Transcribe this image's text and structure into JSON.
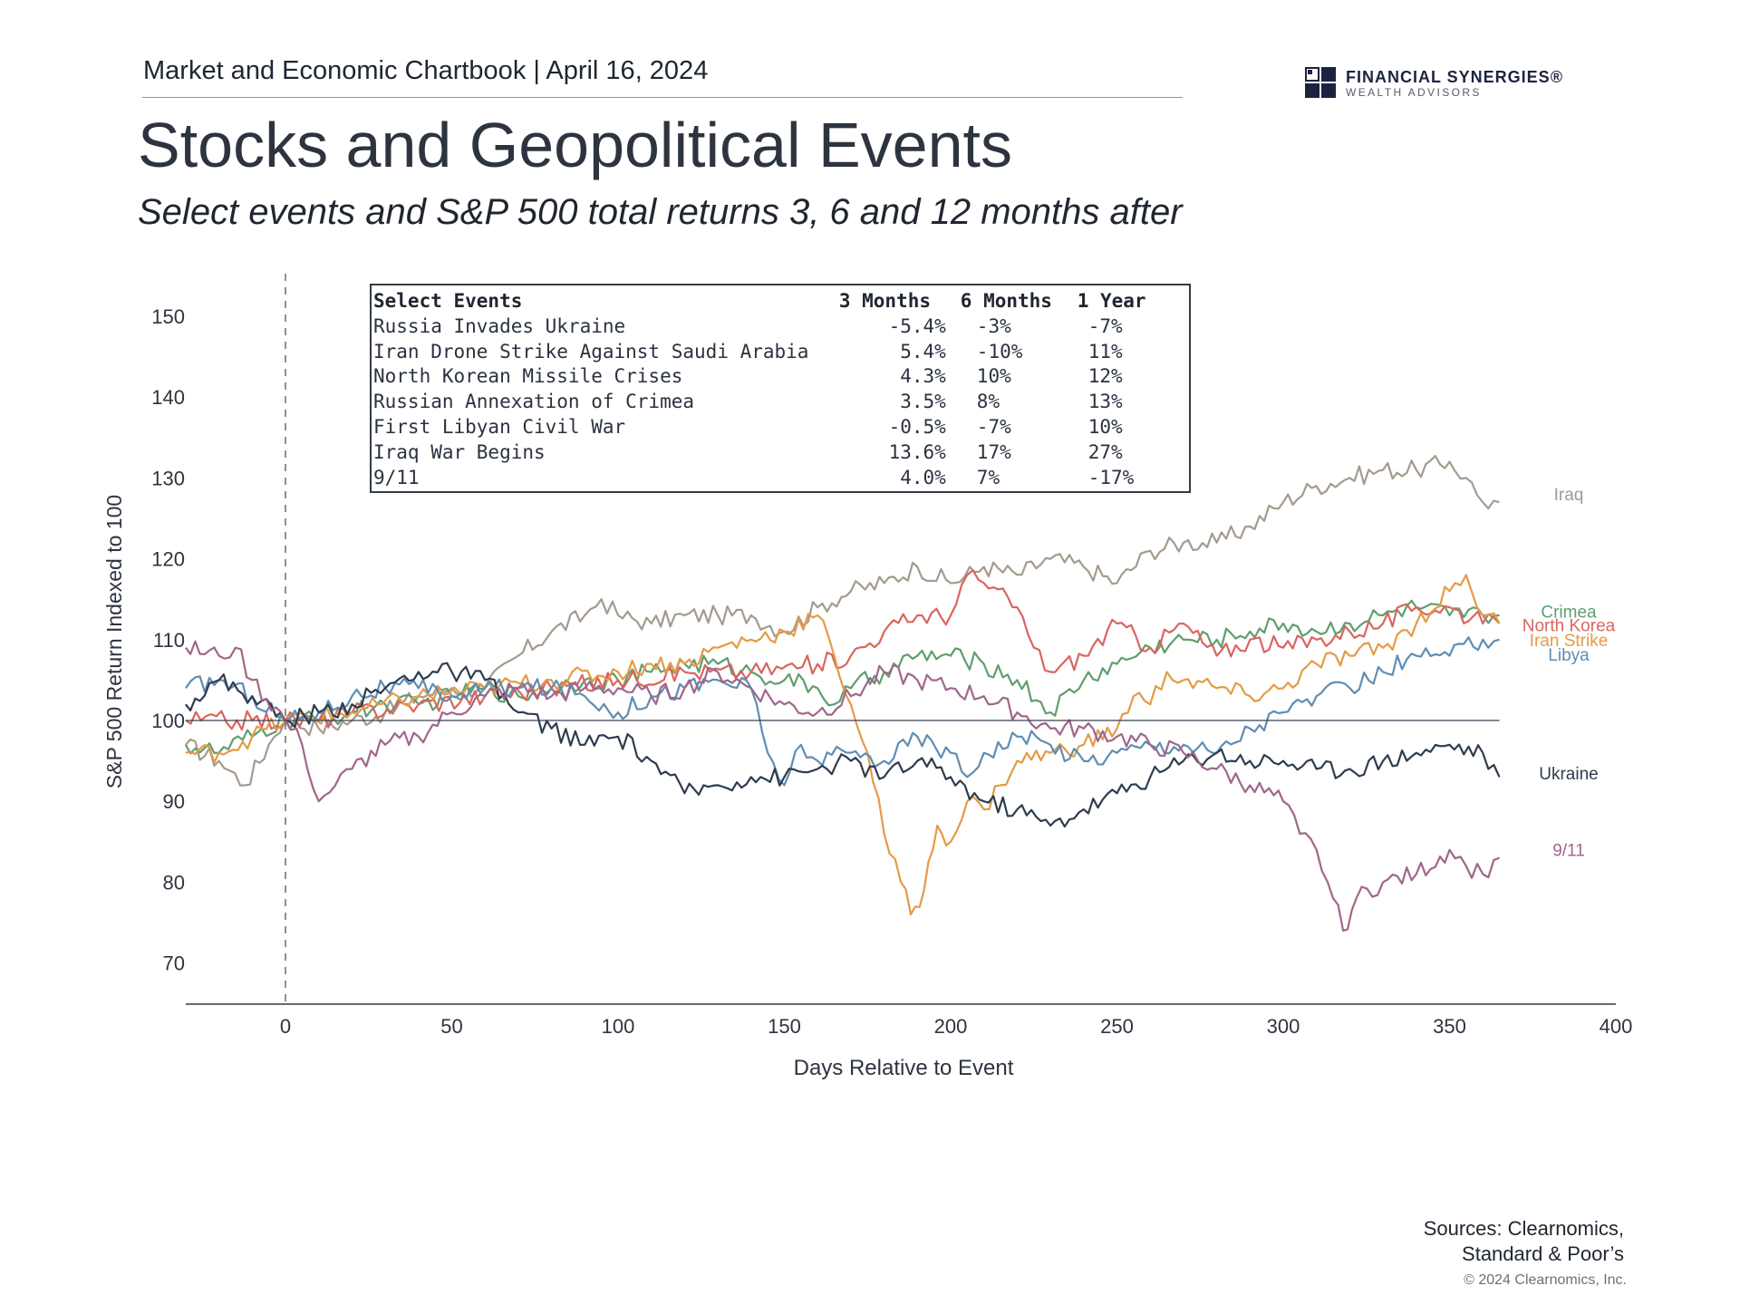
{
  "header": {
    "chartbook_line": "Market and Economic Chartbook | April 16, 2024",
    "logo_name": "FINANCIAL SYNERGIES®",
    "logo_sub": "WEALTH ADVISORS",
    "logo_icon": "checkered-square-icon",
    "title": "Stocks and Geopolitical Events",
    "subtitle": "Select events and S&P 500 total returns 3, 6 and 12 months after"
  },
  "events_table": {
    "headers": [
      "Select Events",
      "3 Months",
      "6 Months",
      "1 Year"
    ],
    "rows": [
      [
        "Russia Invades Ukraine",
        "-5.4%",
        "-3%",
        "-7%"
      ],
      [
        "Iran Drone Strike Against Saudi Arabia",
        "5.4%",
        "-10%",
        "11%"
      ],
      [
        "North Korean Missile Crises",
        "4.3%",
        "10%",
        "12%"
      ],
      [
        "Russian Annexation of Crimea",
        "3.5%",
        "8%",
        "13%"
      ],
      [
        "First Libyan Civil War",
        "-0.5%",
        "-7%",
        "10%"
      ],
      [
        "Iraq War Begins",
        "13.6%",
        "17%",
        "27%"
      ],
      [
        "9/11",
        "4.0%",
        "7%",
        "-17%"
      ]
    ]
  },
  "chart_data": {
    "type": "line",
    "title": "Stocks and Geopolitical Events",
    "xlabel": "Days Relative to Event",
    "ylabel": "S&P 500 Return Indexed to 100",
    "xlim": [
      -30,
      400
    ],
    "ylim": [
      65,
      155
    ],
    "x_ticks": [
      0,
      50,
      100,
      150,
      200,
      250,
      300,
      350,
      400
    ],
    "y_ticks": [
      70,
      80,
      90,
      100,
      110,
      120,
      130,
      140,
      150
    ],
    "reference_line_y": 100,
    "event_marker_x": 0,
    "legend": "series labels at right end of lines",
    "grid": false,
    "series": [
      {
        "name": "Iraq",
        "color": "#a49a8e",
        "points": [
          [
            -30,
            97
          ],
          [
            -20,
            95
          ],
          [
            -12,
            92
          ],
          [
            -5,
            97
          ],
          [
            0,
            100
          ],
          [
            10,
            99
          ],
          [
            20,
            100
          ],
          [
            30,
            101
          ],
          [
            40,
            103
          ],
          [
            50,
            104
          ],
          [
            60,
            104
          ],
          [
            70,
            108
          ],
          [
            80,
            111
          ],
          [
            90,
            113
          ],
          [
            95,
            115
          ],
          [
            100,
            113
          ],
          [
            110,
            112
          ],
          [
            120,
            113
          ],
          [
            130,
            113
          ],
          [
            140,
            113
          ],
          [
            150,
            111
          ],
          [
            160,
            114
          ],
          [
            170,
            116
          ],
          [
            180,
            117
          ],
          [
            190,
            119
          ],
          [
            200,
            117
          ],
          [
            210,
            119
          ],
          [
            220,
            118
          ],
          [
            230,
            120
          ],
          [
            240,
            119
          ],
          [
            250,
            117
          ],
          [
            260,
            121
          ],
          [
            270,
            122
          ],
          [
            280,
            122
          ],
          [
            290,
            124
          ],
          [
            300,
            127
          ],
          [
            310,
            129
          ],
          [
            320,
            130
          ],
          [
            330,
            131
          ],
          [
            340,
            131
          ],
          [
            350,
            132
          ],
          [
            355,
            130
          ],
          [
            360,
            127
          ],
          [
            365,
            127
          ]
        ]
      },
      {
        "name": "Crimea",
        "color": "#5f9e6e",
        "points": [
          [
            -30,
            97
          ],
          [
            -20,
            96
          ],
          [
            -10,
            98
          ],
          [
            0,
            100
          ],
          [
            10,
            100
          ],
          [
            20,
            101
          ],
          [
            30,
            102
          ],
          [
            40,
            102
          ],
          [
            50,
            103
          ],
          [
            60,
            104
          ],
          [
            70,
            103
          ],
          [
            80,
            104
          ],
          [
            90,
            105
          ],
          [
            100,
            105
          ],
          [
            110,
            106
          ],
          [
            120,
            107
          ],
          [
            130,
            107
          ],
          [
            140,
            106
          ],
          [
            150,
            105
          ],
          [
            160,
            104
          ],
          [
            165,
            102
          ],
          [
            170,
            104
          ],
          [
            180,
            106
          ],
          [
            190,
            108
          ],
          [
            200,
            108
          ],
          [
            210,
            107
          ],
          [
            220,
            105
          ],
          [
            230,
            101
          ],
          [
            240,
            105
          ],
          [
            250,
            107
          ],
          [
            260,
            109
          ],
          [
            270,
            110
          ],
          [
            280,
            110
          ],
          [
            290,
            111
          ],
          [
            300,
            112
          ],
          [
            310,
            111
          ],
          [
            320,
            112
          ],
          [
            330,
            113
          ],
          [
            340,
            114
          ],
          [
            350,
            113
          ],
          [
            360,
            113
          ],
          [
            365,
            113
          ]
        ]
      },
      {
        "name": "North Korea",
        "color": "#d9655f",
        "points": [
          [
            -30,
            100
          ],
          [
            -10,
            100
          ],
          [
            0,
            100
          ],
          [
            10,
            100
          ],
          [
            20,
            101
          ],
          [
            40,
            102
          ],
          [
            60,
            103
          ],
          [
            80,
            104
          ],
          [
            100,
            105
          ],
          [
            120,
            106
          ],
          [
            140,
            106
          ],
          [
            160,
            107
          ],
          [
            170,
            108
          ],
          [
            180,
            111
          ],
          [
            190,
            113
          ],
          [
            200,
            113
          ],
          [
            205,
            118
          ],
          [
            210,
            117
          ],
          [
            220,
            114
          ],
          [
            225,
            109
          ],
          [
            230,
            106
          ],
          [
            240,
            108
          ],
          [
            250,
            112
          ],
          [
            260,
            109
          ],
          [
            270,
            112
          ],
          [
            280,
            108
          ],
          [
            290,
            110
          ],
          [
            300,
            109
          ],
          [
            310,
            110
          ],
          [
            320,
            111
          ],
          [
            330,
            112
          ],
          [
            340,
            114
          ],
          [
            350,
            114
          ],
          [
            360,
            112
          ],
          [
            365,
            112
          ]
        ]
      },
      {
        "name": "Iran Strike",
        "color": "#e39b45",
        "points": [
          [
            -30,
            96
          ],
          [
            -20,
            96
          ],
          [
            -10,
            98
          ],
          [
            0,
            100
          ],
          [
            20,
            101
          ],
          [
            40,
            103
          ],
          [
            60,
            104
          ],
          [
            80,
            105
          ],
          [
            100,
            106
          ],
          [
            110,
            107
          ],
          [
            120,
            107
          ],
          [
            130,
            109
          ],
          [
            140,
            110
          ],
          [
            150,
            111
          ],
          [
            160,
            113
          ],
          [
            165,
            108
          ],
          [
            170,
            102
          ],
          [
            175,
            96
          ],
          [
            180,
            86
          ],
          [
            185,
            80
          ],
          [
            188,
            76
          ],
          [
            192,
            79
          ],
          [
            196,
            87
          ],
          [
            200,
            85
          ],
          [
            205,
            90
          ],
          [
            210,
            89
          ],
          [
            215,
            92
          ],
          [
            220,
            95
          ],
          [
            230,
            96
          ],
          [
            240,
            97
          ],
          [
            250,
            99
          ],
          [
            255,
            103
          ],
          [
            260,
            102
          ],
          [
            265,
            106
          ],
          [
            270,
            105
          ],
          [
            280,
            104
          ],
          [
            290,
            103
          ],
          [
            300,
            104
          ],
          [
            310,
            107
          ],
          [
            320,
            108
          ],
          [
            330,
            109
          ],
          [
            340,
            112
          ],
          [
            350,
            116
          ],
          [
            355,
            118
          ],
          [
            360,
            113
          ],
          [
            365,
            112
          ]
        ]
      },
      {
        "name": "Libya",
        "color": "#5f8db3",
        "points": [
          [
            -30,
            104
          ],
          [
            -20,
            105
          ],
          [
            -10,
            103
          ],
          [
            0,
            100
          ],
          [
            10,
            101
          ],
          [
            20,
            103
          ],
          [
            30,
            104
          ],
          [
            40,
            104
          ],
          [
            50,
            103
          ],
          [
            60,
            104
          ],
          [
            70,
            104
          ],
          [
            80,
            104
          ],
          [
            90,
            103
          ],
          [
            100,
            101
          ],
          [
            110,
            103
          ],
          [
            120,
            104
          ],
          [
            130,
            105
          ],
          [
            140,
            104
          ],
          [
            145,
            96
          ],
          [
            150,
            92
          ],
          [
            155,
            97
          ],
          [
            160,
            95
          ],
          [
            170,
            96
          ],
          [
            180,
            95
          ],
          [
            190,
            98
          ],
          [
            200,
            96
          ],
          [
            205,
            93
          ],
          [
            210,
            96
          ],
          [
            220,
            98
          ],
          [
            230,
            97
          ],
          [
            240,
            95
          ],
          [
            250,
            96
          ],
          [
            260,
            97
          ],
          [
            270,
            97
          ],
          [
            280,
            96
          ],
          [
            290,
            99
          ],
          [
            300,
            101
          ],
          [
            310,
            103
          ],
          [
            320,
            104
          ],
          [
            330,
            106
          ],
          [
            340,
            108
          ],
          [
            350,
            108
          ],
          [
            360,
            110
          ],
          [
            365,
            110
          ]
        ]
      },
      {
        "name": "Ukraine",
        "color": "#2e3c4f",
        "points": [
          [
            -30,
            102
          ],
          [
            -20,
            105
          ],
          [
            -10,
            103
          ],
          [
            0,
            100
          ],
          [
            10,
            101
          ],
          [
            20,
            102
          ],
          [
            30,
            104
          ],
          [
            40,
            106
          ],
          [
            50,
            106
          ],
          [
            60,
            105
          ],
          [
            70,
            101
          ],
          [
            80,
            99
          ],
          [
            90,
            97
          ],
          [
            100,
            98
          ],
          [
            110,
            95
          ],
          [
            120,
            91
          ],
          [
            130,
            92
          ],
          [
            140,
            93
          ],
          [
            150,
            93
          ],
          [
            160,
            94
          ],
          [
            170,
            95
          ],
          [
            180,
            93
          ],
          [
            190,
            95
          ],
          [
            200,
            93
          ],
          [
            210,
            90
          ],
          [
            220,
            89
          ],
          [
            230,
            87
          ],
          [
            240,
            89
          ],
          [
            250,
            91
          ],
          [
            260,
            93
          ],
          [
            270,
            95
          ],
          [
            280,
            96
          ],
          [
            290,
            95
          ],
          [
            300,
            95
          ],
          [
            310,
            94
          ],
          [
            320,
            94
          ],
          [
            330,
            95
          ],
          [
            340,
            96
          ],
          [
            350,
            97
          ],
          [
            360,
            96
          ],
          [
            365,
            93
          ]
        ]
      },
      {
        "name": "9/11",
        "color": "#a0668a",
        "points": [
          [
            -30,
            109
          ],
          [
            -20,
            108
          ],
          [
            -15,
            109
          ],
          [
            -10,
            105
          ],
          [
            0,
            100
          ],
          [
            5,
            97
          ],
          [
            10,
            90
          ],
          [
            15,
            92
          ],
          [
            20,
            94
          ],
          [
            30,
            97
          ],
          [
            40,
            98
          ],
          [
            50,
            101
          ],
          [
            60,
            103
          ],
          [
            70,
            104
          ],
          [
            80,
            103
          ],
          [
            90,
            104
          ],
          [
            100,
            104
          ],
          [
            110,
            103
          ],
          [
            120,
            104
          ],
          [
            130,
            106
          ],
          [
            140,
            104
          ],
          [
            150,
            102
          ],
          [
            160,
            101
          ],
          [
            170,
            103
          ],
          [
            180,
            106
          ],
          [
            190,
            105
          ],
          [
            200,
            104
          ],
          [
            210,
            103
          ],
          [
            220,
            101
          ],
          [
            230,
            99
          ],
          [
            240,
            99
          ],
          [
            250,
            98
          ],
          [
            260,
            97
          ],
          [
            270,
            96
          ],
          [
            280,
            94
          ],
          [
            290,
            92
          ],
          [
            300,
            90
          ],
          [
            305,
            86
          ],
          [
            310,
            84
          ],
          [
            315,
            78
          ],
          [
            318,
            74
          ],
          [
            322,
            78
          ],
          [
            330,
            80
          ],
          [
            340,
            81
          ],
          [
            350,
            84
          ],
          [
            355,
            82
          ],
          [
            360,
            81
          ],
          [
            365,
            83
          ]
        ]
      }
    ]
  },
  "footer": {
    "sources_line1": "Sources: Clearnomics,",
    "sources_line2": "Standard & Poor’s",
    "copyright": "© 2024 Clearnomics, Inc."
  }
}
